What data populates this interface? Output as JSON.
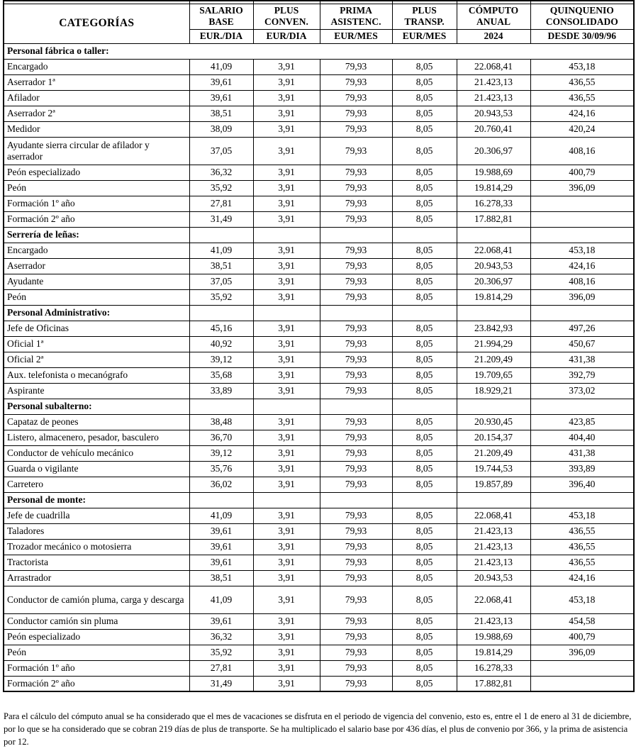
{
  "header": {
    "categories_label": "CATEGORÍAS",
    "columns": [
      {
        "title": "SALARIO BASE",
        "unit": "EUR./DIA"
      },
      {
        "title": "PLUS CONVEN.",
        "unit": "EUR/DIA"
      },
      {
        "title": "PRIMA ASISTENC.",
        "unit": "EUR/MES"
      },
      {
        "title": "PLUS TRANSP.",
        "unit": "EUR/MES"
      },
      {
        "title": "CÓMPUTO ANUAL",
        "unit": "2024"
      },
      {
        "title": "QUINQUENIO CONSOLIDADO",
        "unit": "DESDE 30/09/96"
      }
    ]
  },
  "sections": [
    {
      "title": "Personal fábrica o taller:",
      "full_span": true,
      "rows": [
        {
          "category": "Encargado",
          "values": [
            "41,09",
            "3,91",
            "79,93",
            "8,05",
            "22.068,41",
            "453,18"
          ]
        },
        {
          "category": "Aserrador 1ª",
          "values": [
            "39,61",
            "3,91",
            "79,93",
            "8,05",
            "21.423,13",
            "436,55"
          ]
        },
        {
          "category": "Afilador",
          "values": [
            "39,61",
            "3,91",
            "79,93",
            "8,05",
            "21.423,13",
            "436,55"
          ]
        },
        {
          "category": "Aserrador 2ª",
          "values": [
            "38,51",
            "3,91",
            "79,93",
            "8,05",
            "20.943,53",
            "424,16"
          ]
        },
        {
          "category": "Medidor",
          "values": [
            "38,09",
            "3,91",
            "79,93",
            "8,05",
            "20.760,41",
            "420,24"
          ]
        },
        {
          "category": "Ayudante sierra circular de afilador y aserrador",
          "tall": true,
          "values": [
            "37,05",
            "3,91",
            "79,93",
            "8,05",
            "20.306,97",
            "408,16"
          ]
        },
        {
          "category": "Peón especializado",
          "values": [
            "36,32",
            "3,91",
            "79,93",
            "8,05",
            "19.988,69",
            "400,79"
          ]
        },
        {
          "category": "Peón",
          "values": [
            "35,92",
            "3,91",
            "79,93",
            "8,05",
            "19.814,29",
            "396,09"
          ]
        },
        {
          "category": "Formación 1º año",
          "values": [
            "27,81",
            "3,91",
            "79,93",
            "8,05",
            "16.278,33",
            ""
          ]
        },
        {
          "category": "Formación 2º año",
          "values": [
            "31,49",
            "3,91",
            "79,93",
            "8,05",
            "17.882,81",
            ""
          ]
        }
      ]
    },
    {
      "title": "Serrería de leñas:",
      "full_span": false,
      "rows": [
        {
          "category": "Encargado",
          "values": [
            "41,09",
            "3,91",
            "79,93",
            "8,05",
            "22.068,41",
            "453,18"
          ]
        },
        {
          "category": "Aserrador",
          "values": [
            "38,51",
            "3,91",
            "79,93",
            "8,05",
            "20.943,53",
            "424,16"
          ]
        },
        {
          "category": "Ayudante",
          "values": [
            "37,05",
            "3,91",
            "79,93",
            "8,05",
            "20.306,97",
            "408,16"
          ]
        },
        {
          "category": "Peón",
          "values": [
            "35,92",
            "3,91",
            "79,93",
            "8,05",
            "19.814,29",
            "396,09"
          ]
        }
      ]
    },
    {
      "title": "Personal Administrativo:",
      "full_span": false,
      "rows": [
        {
          "category": "Jefe de Oficinas",
          "values": [
            "45,16",
            "3,91",
            "79,93",
            "8,05",
            "23.842,93",
            "497,26"
          ]
        },
        {
          "category": "Oficial 1ª",
          "values": [
            "40,92",
            "3,91",
            "79,93",
            "8,05",
            "21.994,29",
            "450,67"
          ]
        },
        {
          "category": "Oficial 2ª",
          "values": [
            "39,12",
            "3,91",
            "79,93",
            "8,05",
            "21.209,49",
            "431,38"
          ]
        },
        {
          "category": "Aux. telefonista o mecanógrafo",
          "values": [
            "35,68",
            "3,91",
            "79,93",
            "8,05",
            "19.709,65",
            "392,79"
          ]
        },
        {
          "category": "Aspirante",
          "values": [
            "33,89",
            "3,91",
            "79,93",
            "8,05",
            "18.929,21",
            "373,02"
          ]
        }
      ]
    },
    {
      "title": "Personal subalterno:",
      "full_span": false,
      "rows": [
        {
          "category": "Capataz de peones",
          "values": [
            "38,48",
            "3,91",
            "79,93",
            "8,05",
            "20.930,45",
            "423,85"
          ]
        },
        {
          "category": "Listero, almacenero, pesador, basculero",
          "values": [
            "36,70",
            "3,91",
            "79,93",
            "8,05",
            "20.154,37",
            "404,40"
          ]
        },
        {
          "category": "Conductor de vehículo mecánico",
          "values": [
            "39,12",
            "3,91",
            "79,93",
            "8,05",
            "21.209,49",
            "431,38"
          ]
        },
        {
          "category": "Guarda o vigilante",
          "values": [
            "35,76",
            "3,91",
            "79,93",
            "8,05",
            "19.744,53",
            "393,89"
          ]
        },
        {
          "category": "Carretero",
          "values": [
            "36,02",
            "3,91",
            "79,93",
            "8,05",
            "19.857,89",
            "396,40"
          ]
        }
      ]
    },
    {
      "title": "Personal de monte:",
      "full_span": false,
      "rows": [
        {
          "category": "Jefe de cuadrilla",
          "values": [
            "41,09",
            "3,91",
            "79,93",
            "8,05",
            "22.068,41",
            "453,18"
          ]
        },
        {
          "category": "Taladores",
          "values": [
            "39,61",
            "3,91",
            "79,93",
            "8,05",
            "21.423,13",
            "436,55"
          ]
        },
        {
          "category": "Trozador mecánico o motosierra",
          "values": [
            "39,61",
            "3,91",
            "79,93",
            "8,05",
            "21.423,13",
            "436,55"
          ]
        },
        {
          "category": "Tractorista",
          "values": [
            "39,61",
            "3,91",
            "79,93",
            "8,05",
            "21.423,13",
            "436,55"
          ]
        },
        {
          "category": "Arrastrador",
          "values": [
            "38,51",
            "3,91",
            "79,93",
            "8,05",
            "20.943,53",
            "424,16"
          ]
        },
        {
          "category": "Conductor de camión pluma, carga y descarga",
          "tall": true,
          "values": [
            "41,09",
            "3,91",
            "79,93",
            "8,05",
            "22.068,41",
            "453,18"
          ]
        },
        {
          "category": "Conductor camión sin pluma",
          "values": [
            "39,61",
            "3,91",
            "79,93",
            "8,05",
            "21.423,13",
            "454,58"
          ]
        },
        {
          "category": "Peón especializado",
          "values": [
            "36,32",
            "3,91",
            "79,93",
            "8,05",
            "19.988,69",
            "400,79"
          ]
        },
        {
          "category": "Peón",
          "values": [
            "35,92",
            "3,91",
            "79,93",
            "8,05",
            "19.814,29",
            "396,09"
          ]
        },
        {
          "category": "Formación 1º año",
          "values": [
            "27,81",
            "3,91",
            "79,93",
            "8,05",
            "16.278,33",
            ""
          ]
        },
        {
          "category": "Formación 2º año",
          "values": [
            "31,49",
            "3,91",
            "79,93",
            "8,05",
            "17.882,81",
            ""
          ]
        }
      ]
    }
  ],
  "footnote": "Para el cálculo del cómputo anual se ha considerado que el mes de vacaciones se disfruta en el periodo de vigencia del convenio, esto es, entre el 1 de enero al 31 de diciembre, por lo que se ha considerado que se cobran 219 días de plus de transporte. Se ha multiplicado el salario base por 436 días, el plus de convenio por 366,  y la prima de asistencia por 12."
}
